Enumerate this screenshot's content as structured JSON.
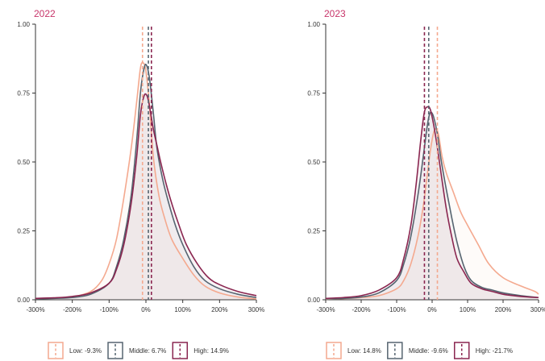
{
  "chart_data": [
    {
      "type": "line",
      "title": "2022",
      "xlabel": "",
      "ylabel": "",
      "xlim": [
        -300,
        300
      ],
      "ylim": [
        0,
        1
      ],
      "x_ticks": [
        -300,
        -200,
        -100,
        0,
        100,
        200,
        300
      ],
      "x_tick_labels": [
        "-300%",
        "-200%",
        "-100%",
        "0%",
        "100%",
        "200%",
        "300%"
      ],
      "y_ticks": [
        0,
        0.25,
        0.5,
        0.75,
        1
      ],
      "y_tick_labels": [
        "0.00",
        "0.25",
        "0.50",
        "0.75",
        "1.00"
      ],
      "legend_position": "bottom",
      "series": [
        {
          "name": "Low",
          "legend_label": "Low: -9.3%",
          "color": "#f4a98f",
          "mean_line": -9.3,
          "points": [
            [
              -300,
              0.003
            ],
            [
              -250,
              0.006
            ],
            [
              -200,
              0.01
            ],
            [
              -150,
              0.03
            ],
            [
              -120,
              0.07
            ],
            [
              -100,
              0.13
            ],
            [
              -80,
              0.22
            ],
            [
              -60,
              0.37
            ],
            [
              -40,
              0.55
            ],
            [
              -25,
              0.72
            ],
            [
              -15,
              0.84
            ],
            [
              -8,
              0.86
            ],
            [
              0,
              0.83
            ],
            [
              10,
              0.7
            ],
            [
              20,
              0.52
            ],
            [
              35,
              0.38
            ],
            [
              50,
              0.3
            ],
            [
              70,
              0.22
            ],
            [
              100,
              0.15
            ],
            [
              130,
              0.09
            ],
            [
              160,
              0.05
            ],
            [
              200,
              0.025
            ],
            [
              250,
              0.01
            ],
            [
              300,
              0.003
            ]
          ]
        },
        {
          "name": "Middle",
          "legend_label": "Middle: 6.7%",
          "color": "#566470",
          "mean_line": 6.7,
          "points": [
            [
              -300,
              0.003
            ],
            [
              -250,
              0.005
            ],
            [
              -200,
              0.008
            ],
            [
              -150,
              0.02
            ],
            [
              -100,
              0.06
            ],
            [
              -80,
              0.12
            ],
            [
              -60,
              0.22
            ],
            [
              -40,
              0.38
            ],
            [
              -25,
              0.58
            ],
            [
              -15,
              0.75
            ],
            [
              -5,
              0.84
            ],
            [
              2,
              0.85
            ],
            [
              10,
              0.8
            ],
            [
              20,
              0.68
            ],
            [
              30,
              0.55
            ],
            [
              45,
              0.44
            ],
            [
              60,
              0.36
            ],
            [
              80,
              0.27
            ],
            [
              100,
              0.2
            ],
            [
              130,
              0.12
            ],
            [
              160,
              0.07
            ],
            [
              200,
              0.04
            ],
            [
              250,
              0.02
            ],
            [
              300,
              0.008
            ]
          ]
        },
        {
          "name": "High",
          "legend_label": "High: 14.9%",
          "color": "#8a2650",
          "mean_line": 14.9,
          "points": [
            [
              -300,
              0.005
            ],
            [
              -250,
              0.007
            ],
            [
              -200,
              0.012
            ],
            [
              -150,
              0.025
            ],
            [
              -100,
              0.06
            ],
            [
              -80,
              0.11
            ],
            [
              -60,
              0.2
            ],
            [
              -40,
              0.35
            ],
            [
              -25,
              0.52
            ],
            [
              -15,
              0.67
            ],
            [
              -5,
              0.74
            ],
            [
              3,
              0.74
            ],
            [
              10,
              0.7
            ],
            [
              20,
              0.62
            ],
            [
              30,
              0.56
            ],
            [
              40,
              0.5
            ],
            [
              55,
              0.42
            ],
            [
              70,
              0.35
            ],
            [
              90,
              0.27
            ],
            [
              110,
              0.2
            ],
            [
              140,
              0.13
            ],
            [
              170,
              0.08
            ],
            [
              200,
              0.055
            ],
            [
              250,
              0.03
            ],
            [
              300,
              0.015
            ]
          ]
        }
      ]
    },
    {
      "type": "line",
      "title": "2023",
      "xlabel": "",
      "ylabel": "",
      "xlim": [
        -300,
        300
      ],
      "ylim": [
        0,
        1
      ],
      "x_ticks": [
        -300,
        -200,
        -100,
        0,
        100,
        200,
        300
      ],
      "x_tick_labels": [
        "-300%",
        "-200%",
        "-100%",
        "0%",
        "100%",
        "200%",
        "300%"
      ],
      "y_ticks": [
        0,
        0.25,
        0.5,
        0.75,
        1
      ],
      "y_tick_labels": [
        "0.00",
        "0.25",
        "0.50",
        "0.75",
        "1.00"
      ],
      "legend_position": "bottom",
      "series": [
        {
          "name": "Low",
          "legend_label": "Low: 14.8%",
          "color": "#f4a98f",
          "mean_line": 14.8,
          "points": [
            [
              -300,
              0.002
            ],
            [
              -250,
              0.004
            ],
            [
              -200,
              0.008
            ],
            [
              -150,
              0.015
            ],
            [
              -100,
              0.04
            ],
            [
              -80,
              0.07
            ],
            [
              -60,
              0.13
            ],
            [
              -40,
              0.23
            ],
            [
              -25,
              0.34
            ],
            [
              -15,
              0.44
            ],
            [
              -5,
              0.54
            ],
            [
              3,
              0.6
            ],
            [
              10,
              0.62
            ],
            [
              18,
              0.6
            ],
            [
              28,
              0.52
            ],
            [
              40,
              0.46
            ],
            [
              60,
              0.39
            ],
            [
              80,
              0.32
            ],
            [
              100,
              0.27
            ],
            [
              130,
              0.2
            ],
            [
              160,
              0.13
            ],
            [
              200,
              0.08
            ],
            [
              250,
              0.05
            ],
            [
              290,
              0.03
            ],
            [
              300,
              0.02
            ]
          ]
        },
        {
          "name": "Middle",
          "legend_label": "Middle: -9.6%",
          "color": "#566470",
          "mean_line": -9.6,
          "points": [
            [
              -300,
              0.003
            ],
            [
              -250,
              0.005
            ],
            [
              -200,
              0.01
            ],
            [
              -150,
              0.025
            ],
            [
              -100,
              0.07
            ],
            [
              -80,
              0.13
            ],
            [
              -60,
              0.23
            ],
            [
              -40,
              0.38
            ],
            [
              -25,
              0.52
            ],
            [
              -15,
              0.62
            ],
            [
              -8,
              0.67
            ],
            [
              -2,
              0.68
            ],
            [
              5,
              0.66
            ],
            [
              15,
              0.6
            ],
            [
              25,
              0.51
            ],
            [
              40,
              0.4
            ],
            [
              55,
              0.3
            ],
            [
              70,
              0.21
            ],
            [
              90,
              0.12
            ],
            [
              110,
              0.07
            ],
            [
              140,
              0.045
            ],
            [
              170,
              0.035
            ],
            [
              200,
              0.025
            ],
            [
              250,
              0.015
            ],
            [
              300,
              0.008
            ]
          ]
        },
        {
          "name": "High",
          "legend_label": "High: -21.7%",
          "color": "#8a2650",
          "mean_line": -21.7,
          "points": [
            [
              -300,
              0.005
            ],
            [
              -250,
              0.008
            ],
            [
              -200,
              0.015
            ],
            [
              -150,
              0.035
            ],
            [
              -100,
              0.08
            ],
            [
              -80,
              0.15
            ],
            [
              -60,
              0.27
            ],
            [
              -45,
              0.42
            ],
            [
              -32,
              0.58
            ],
            [
              -22,
              0.68
            ],
            [
              -13,
              0.7
            ],
            [
              -5,
              0.69
            ],
            [
              5,
              0.63
            ],
            [
              15,
              0.55
            ],
            [
              25,
              0.46
            ],
            [
              40,
              0.33
            ],
            [
              55,
              0.23
            ],
            [
              70,
              0.15
            ],
            [
              90,
              0.1
            ],
            [
              110,
              0.06
            ],
            [
              140,
              0.04
            ],
            [
              170,
              0.03
            ],
            [
              200,
              0.02
            ],
            [
              250,
              0.012
            ],
            [
              300,
              0.008
            ]
          ]
        }
      ]
    }
  ]
}
